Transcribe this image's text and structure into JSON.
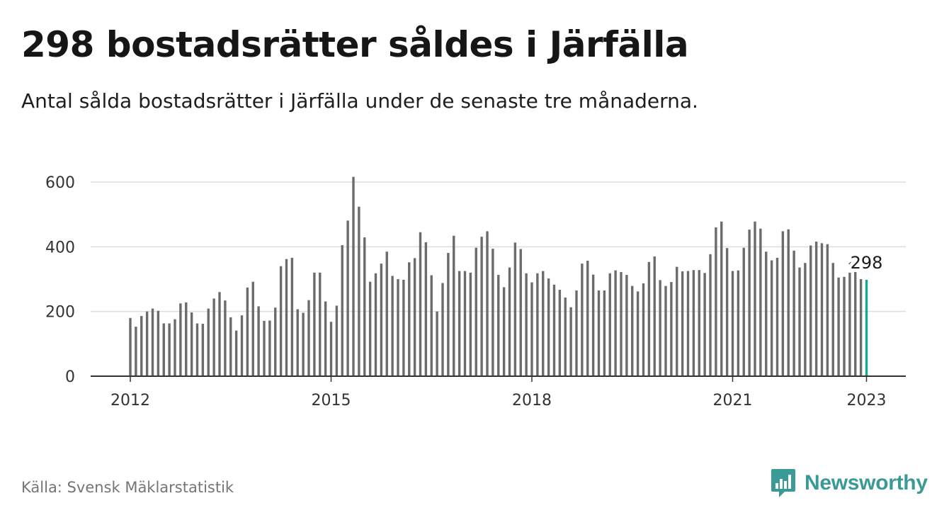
{
  "header": {
    "title": "298 bostadsrätter såldes i Järfälla",
    "subtitle": "Antal sålda bostadsrätter i Järfälla under de senaste tre månaderna."
  },
  "footer": {
    "source": "Källa: Svensk Mäklarstatistik",
    "brand": "Newsworthy"
  },
  "colors": {
    "bar": "#6b6b6b",
    "highlight": "#1aa695",
    "grid": "#dddddd",
    "axis": "#333333",
    "brand": "#3a9a96"
  },
  "chart_data": {
    "type": "bar",
    "ylim": [
      0,
      640
    ],
    "yticks": [
      0,
      200,
      400,
      600
    ],
    "xticks": [
      {
        "label": "2012",
        "index": 0
      },
      {
        "label": "2015",
        "index": 36
      },
      {
        "label": "2018",
        "index": 72
      },
      {
        "label": "2021",
        "index": 108
      },
      {
        "label": "2023",
        "index": 132
      }
    ],
    "annotation": {
      "label": "298",
      "index": 132
    },
    "values": [
      180,
      153,
      186,
      200,
      209,
      202,
      163,
      163,
      176,
      225,
      228,
      197,
      163,
      162,
      209,
      240,
      260,
      234,
      182,
      141,
      188,
      274,
      292,
      216,
      171,
      172,
      212,
      340,
      362,
      366,
      207,
      196,
      235,
      320,
      320,
      231,
      168,
      218,
      405,
      481,
      616,
      524,
      429,
      292,
      318,
      348,
      385,
      310,
      300,
      298,
      352,
      365,
      445,
      414,
      312,
      200,
      288,
      381,
      434,
      325,
      325,
      320,
      397,
      431,
      448,
      394,
      313,
      275,
      336,
      413,
      393,
      318,
      290,
      318,
      325,
      302,
      283,
      267,
      243,
      213,
      265,
      348,
      357,
      314,
      265,
      265,
      318,
      327,
      322,
      313,
      279,
      262,
      287,
      353,
      370,
      297,
      279,
      291,
      338,
      324,
      325,
      328,
      328,
      319,
      377,
      460,
      478,
      396,
      325,
      327,
      397,
      453,
      478,
      456,
      385,
      358,
      366,
      448,
      454,
      388,
      336,
      350,
      404,
      416,
      411,
      408,
      350,
      305,
      307,
      320,
      322,
      300,
      298
    ]
  }
}
